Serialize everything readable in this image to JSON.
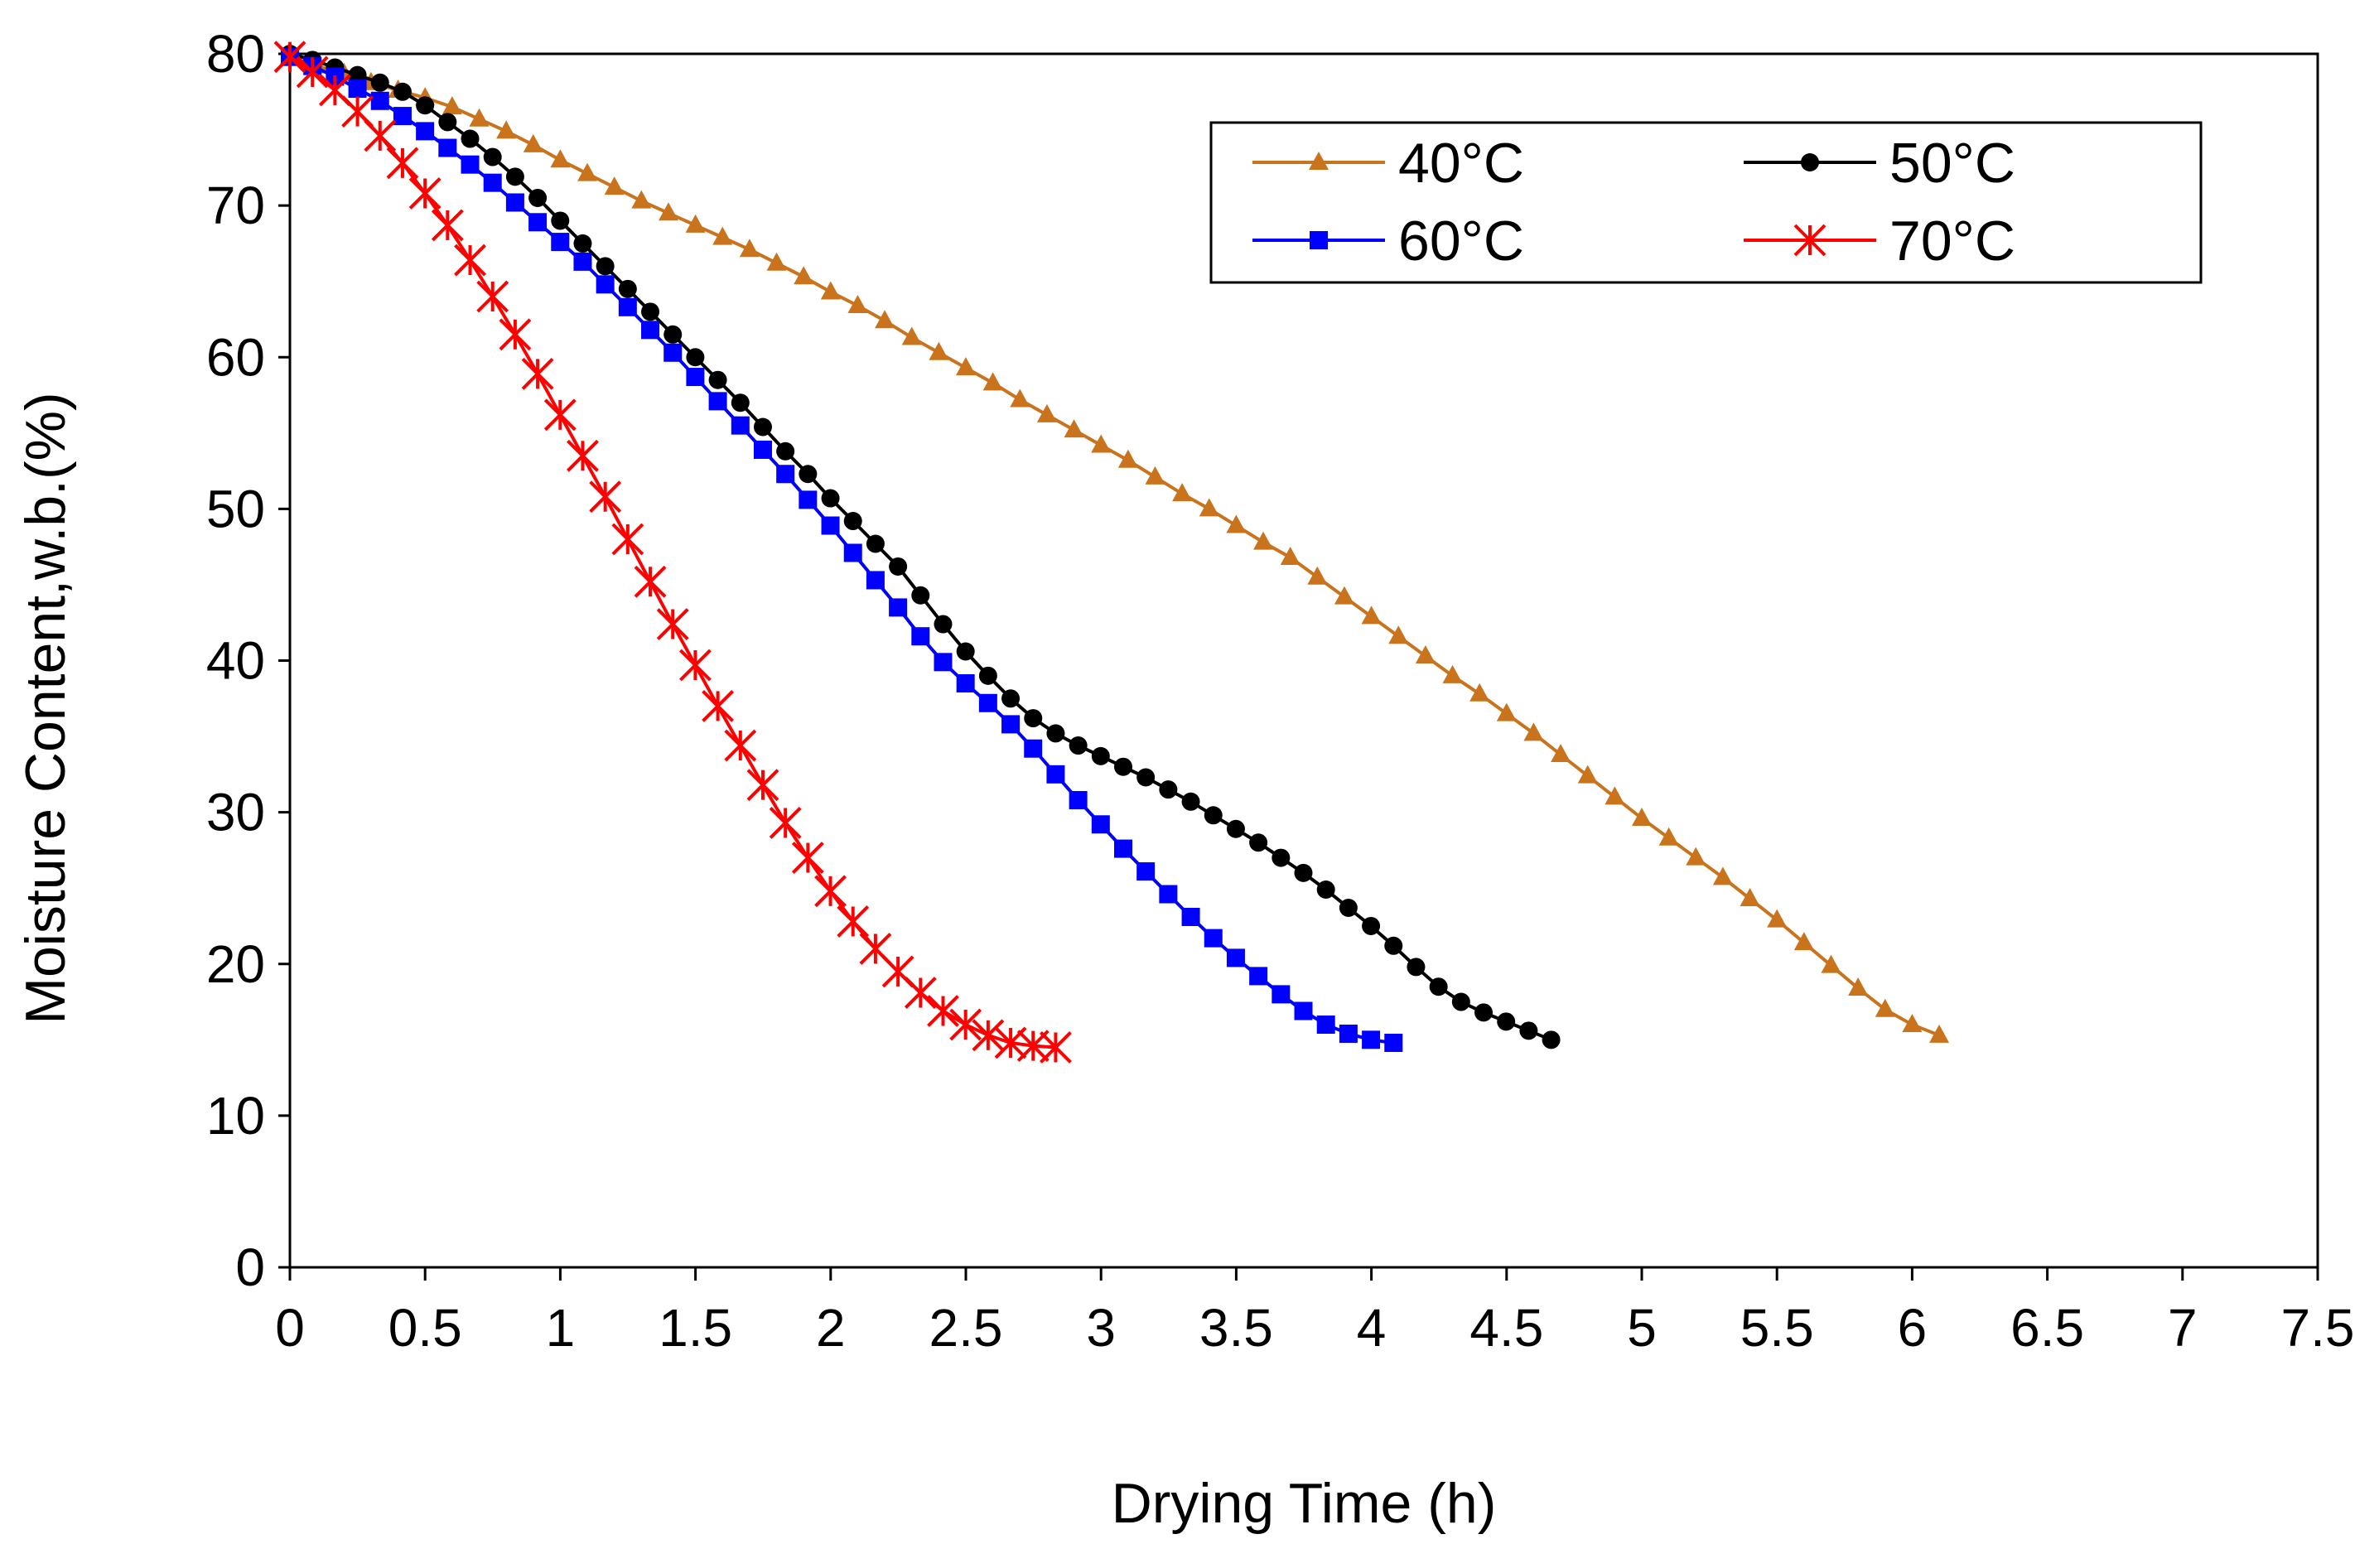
{
  "chart_data": {
    "type": "line",
    "title": "",
    "xlabel": "Drying Time (h)",
    "ylabel": "Moisture Content,w.b.(%)",
    "xlim": [
      0,
      7.5
    ],
    "ylim": [
      0,
      80
    ],
    "x_ticks": [
      "0",
      "0.5",
      "1",
      "1.5",
      "2",
      "2.5",
      "3",
      "3.5",
      "4",
      "4.5",
      "5",
      "5.5",
      "6",
      "6.5",
      "7",
      "7.5"
    ],
    "y_ticks": [
      "0",
      "10",
      "20",
      "30",
      "40",
      "50",
      "60",
      "70",
      "80"
    ],
    "grid": false,
    "legend_position": "top-right",
    "series": [
      {
        "name": "40°C",
        "color": "#c9731c",
        "marker": "triangle",
        "x_start": 0,
        "x_step": 0.1,
        "values": [
          79.8,
          79.2,
          78.7,
          78.1,
          77.6,
          77.1,
          76.5,
          75.7,
          74.9,
          74.0,
          73.0,
          72.1,
          71.2,
          70.3,
          69.5,
          68.7,
          67.9,
          67.1,
          66.2,
          65.3,
          64.3,
          63.4,
          62.4,
          61.3,
          60.3,
          59.3,
          58.3,
          57.2,
          56.2,
          55.2,
          54.2,
          53.2,
          52.1,
          51.0,
          50.0,
          48.9,
          47.8,
          46.8,
          45.5,
          44.2,
          42.9,
          41.6,
          40.3,
          39.0,
          37.8,
          36.5,
          35.2,
          33.8,
          32.4,
          31.0,
          29.6,
          28.3,
          27.0,
          25.7,
          24.3,
          22.9,
          21.4,
          19.9,
          18.4,
          17.0,
          16.0,
          15.3
        ]
      },
      {
        "name": "50°C",
        "color": "#000000",
        "marker": "circle",
        "x_start": 0,
        "x_step": 0.0833,
        "values": [
          80.0,
          79.6,
          79.1,
          78.6,
          78.1,
          77.5,
          76.6,
          75.5,
          74.4,
          73.2,
          71.9,
          70.5,
          69.0,
          67.5,
          66.0,
          64.5,
          63.0,
          61.5,
          60.0,
          58.5,
          57.0,
          55.4,
          53.8,
          52.3,
          50.7,
          49.2,
          47.7,
          46.2,
          44.3,
          42.4,
          40.6,
          39.0,
          37.5,
          36.2,
          35.2,
          34.4,
          33.7,
          33.0,
          32.3,
          31.5,
          30.7,
          29.8,
          28.9,
          28.0,
          27.0,
          26.0,
          24.9,
          23.7,
          22.5,
          21.2,
          19.8,
          18.5,
          17.5,
          16.8,
          16.2,
          15.6,
          15.0
        ]
      },
      {
        "name": "60°C",
        "color": "#0000ff",
        "marker": "square",
        "x_start": 0,
        "x_step": 0.0833,
        "values": [
          79.8,
          79.2,
          78.5,
          77.7,
          76.9,
          75.9,
          74.9,
          73.8,
          72.7,
          71.5,
          70.2,
          68.9,
          67.6,
          66.3,
          64.8,
          63.3,
          61.8,
          60.3,
          58.7,
          57.1,
          55.5,
          53.9,
          52.3,
          50.6,
          48.9,
          47.1,
          45.3,
          43.5,
          41.6,
          39.9,
          38.5,
          37.2,
          35.8,
          34.2,
          32.5,
          30.8,
          29.2,
          27.6,
          26.1,
          24.6,
          23.1,
          21.7,
          20.4,
          19.2,
          18.0,
          16.9,
          16.0,
          15.4,
          15.0,
          14.8
        ]
      },
      {
        "name": "70°C",
        "color": "#ff0000",
        "marker": "asterisk",
        "x_start": 0,
        "x_step": 0.0833,
        "values": [
          79.8,
          78.8,
          77.6,
          76.2,
          74.6,
          72.8,
          70.8,
          68.7,
          66.4,
          64.0,
          61.5,
          58.9,
          56.2,
          53.5,
          50.8,
          48.0,
          45.2,
          42.4,
          39.7,
          37.0,
          34.4,
          31.8,
          29.3,
          27.0,
          24.8,
          22.8,
          21.0,
          19.5,
          18.1,
          16.9,
          16.0,
          15.3,
          14.8,
          14.6,
          14.5
        ]
      }
    ]
  }
}
